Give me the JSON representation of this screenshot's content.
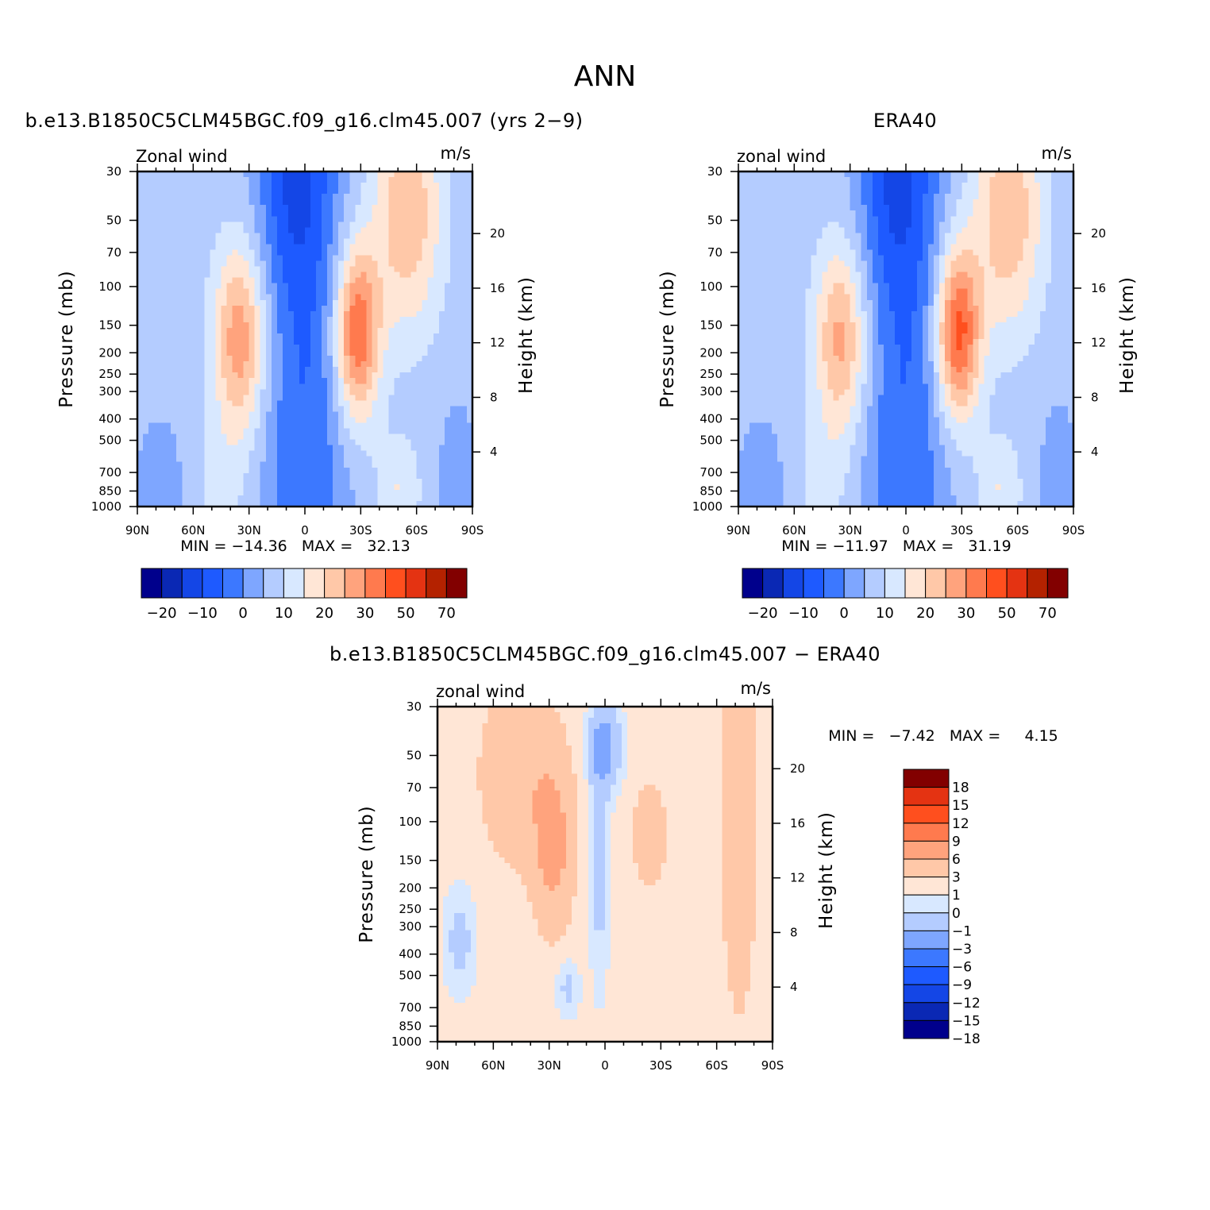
{
  "figure": {
    "title": "ANN"
  },
  "colors": {
    "palette": [
      "#00008c",
      "#0a28b4",
      "#1446e6",
      "#1e5aff",
      "#3c78ff",
      "#7ea6ff",
      "#b4ccff",
      "#d8e8ff",
      "#ffe6d6",
      "#ffc8a8",
      "#ffa37d",
      "#ff7a4e",
      "#ff4f1e",
      "#e43312",
      "#b42200",
      "#820000"
    ],
    "frame": "#000000",
    "background": "#ffffff"
  },
  "panels": [
    {
      "title": "b.e13.B1850C5CLM45BGC.f09_g16.clm45.007 (yrs 2-9)",
      "left_label": "Zonal wind",
      "right_label": "m/s",
      "ylabel": "Pressure (mb)",
      "ylabel_right": "Height (km)",
      "min_label": "MIN = -14.36   MAX =   32.13",
      "colorbar_labels": [
        "-20",
        "-10",
        "0",
        "10",
        "20",
        "30",
        "50",
        "70"
      ]
    },
    {
      "title": "ERA40",
      "left_label": "zonal wind",
      "right_label": "m/s",
      "ylabel": "Pressure (mb)",
      "ylabel_right": "Height (km)",
      "min_label": "MIN = -11.97   MAX =   31.19",
      "colorbar_labels": [
        "-20",
        "-10",
        "0",
        "10",
        "20",
        "30",
        "50",
        "70"
      ]
    },
    {
      "title": "b.e13.B1850C5CLM45BGC.f09_g16.clm45.007 - ERA40",
      "left_label": "zonal wind",
      "right_label": "m/s",
      "ylabel": "Pressure (mb)",
      "ylabel_right": "Height (km)",
      "min_label": "MIN =   -7.42   MAX =     4.15",
      "colorbar_labels": [
        "18",
        "15",
        "12",
        "9",
        "6",
        "3",
        "1",
        "0",
        "-1",
        "-3",
        "-6",
        "-9",
        "-12",
        "-15",
        "-18"
      ]
    }
  ],
  "chart_data": [
    {
      "type": "heatmap",
      "title": "b.e13.B1850C5CLM45BGC.f09_g16.clm45.007 (yrs 2-9)",
      "variable": "Zonal wind",
      "units": "m/s",
      "x_tick_labels": [
        "90N",
        "60N",
        "30N",
        "0",
        "30S",
        "60S",
        "90S"
      ],
      "y_tick_labels": [
        "30",
        "50",
        "70",
        "100",
        "150",
        "200",
        "250",
        "300",
        "400",
        "500",
        "700",
        "850",
        "1000"
      ],
      "y_right_tick_labels": [
        "20",
        "16",
        "12",
        "8",
        "4"
      ],
      "x_range": [
        90,
        -90
      ],
      "y_range_mb": [
        1000,
        30
      ],
      "y_scale": "log",
      "xlabel": "",
      "ylabel": "Pressure (mb)",
      "ylabel_right": "Height (km)",
      "contour_levels": [
        -25,
        -20,
        -15,
        -10,
        -5,
        0,
        5,
        10,
        15,
        20,
        25,
        30,
        40,
        50,
        60,
        70
      ],
      "min": -14.36,
      "max": 32.13
    },
    {
      "type": "heatmap",
      "title": "ERA40",
      "variable": "zonal wind",
      "units": "m/s",
      "x_tick_labels": [
        "90N",
        "60N",
        "30N",
        "0",
        "30S",
        "60S",
        "90S"
      ],
      "y_tick_labels": [
        "30",
        "50",
        "70",
        "100",
        "150",
        "200",
        "250",
        "300",
        "400",
        "500",
        "700",
        "850",
        "1000"
      ],
      "y_right_tick_labels": [
        "20",
        "16",
        "12",
        "8",
        "4"
      ],
      "x_range": [
        90,
        -90
      ],
      "y_range_mb": [
        1000,
        30
      ],
      "y_scale": "log",
      "xlabel": "",
      "ylabel": "Pressure (mb)",
      "ylabel_right": "Height (km)",
      "contour_levels": [
        -25,
        -20,
        -15,
        -10,
        -5,
        0,
        5,
        10,
        15,
        20,
        25,
        30,
        40,
        50,
        60,
        70
      ],
      "min": -11.97,
      "max": 31.19
    },
    {
      "type": "heatmap",
      "title": "b.e13.B1850C5CLM45BGC.f09_g16.clm45.007 - ERA40",
      "variable": "zonal wind",
      "units": "m/s",
      "x_tick_labels": [
        "90N",
        "60N",
        "30N",
        "0",
        "30S",
        "60S",
        "90S"
      ],
      "y_tick_labels": [
        "30",
        "50",
        "70",
        "100",
        "150",
        "200",
        "250",
        "300",
        "400",
        "500",
        "700",
        "850",
        "1000"
      ],
      "y_right_tick_labels": [
        "20",
        "16",
        "12",
        "8",
        "4"
      ],
      "x_range": [
        90,
        -90
      ],
      "y_range_mb": [
        1000,
        30
      ],
      "y_scale": "log",
      "xlabel": "",
      "ylabel": "Pressure (mb)",
      "ylabel_right": "Height (km)",
      "contour_levels": [
        -18,
        -15,
        -12,
        -9,
        -6,
        -3,
        -1,
        0,
        1,
        3,
        6,
        9,
        12,
        15,
        18
      ],
      "min": -7.42,
      "max": 4.15
    }
  ]
}
